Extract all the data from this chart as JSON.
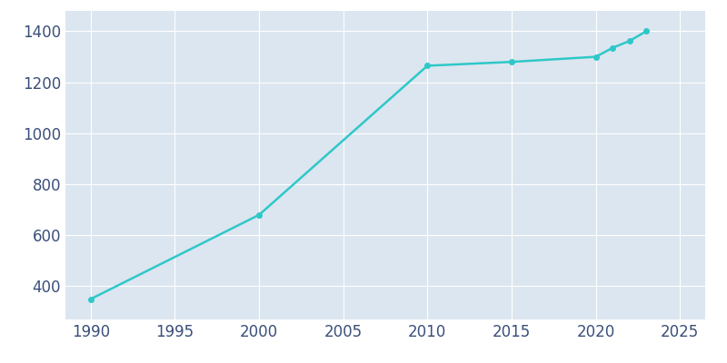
{
  "years": [
    1990,
    2000,
    2010,
    2015,
    2020,
    2021,
    2022,
    2023
  ],
  "population": [
    350,
    680,
    1265,
    1280,
    1300,
    1335,
    1362,
    1400
  ],
  "line_color": "#2EC8C8",
  "marker_color": "#2EC8C8",
  "axes_facecolor": "#DCE6F0",
  "figure_facecolor": "#FFFFFF",
  "text_color": "#3A4F7A",
  "grid_color": "#FFFFFF",
  "xlim": [
    1988.5,
    2026.5
  ],
  "ylim": [
    270,
    1480
  ],
  "xticks": [
    1990,
    1995,
    2000,
    2005,
    2010,
    2015,
    2020,
    2025
  ],
  "yticks": [
    400,
    600,
    800,
    1000,
    1200,
    1400
  ],
  "line_width": 1.8,
  "marker_size": 4,
  "tick_fontsize": 12
}
